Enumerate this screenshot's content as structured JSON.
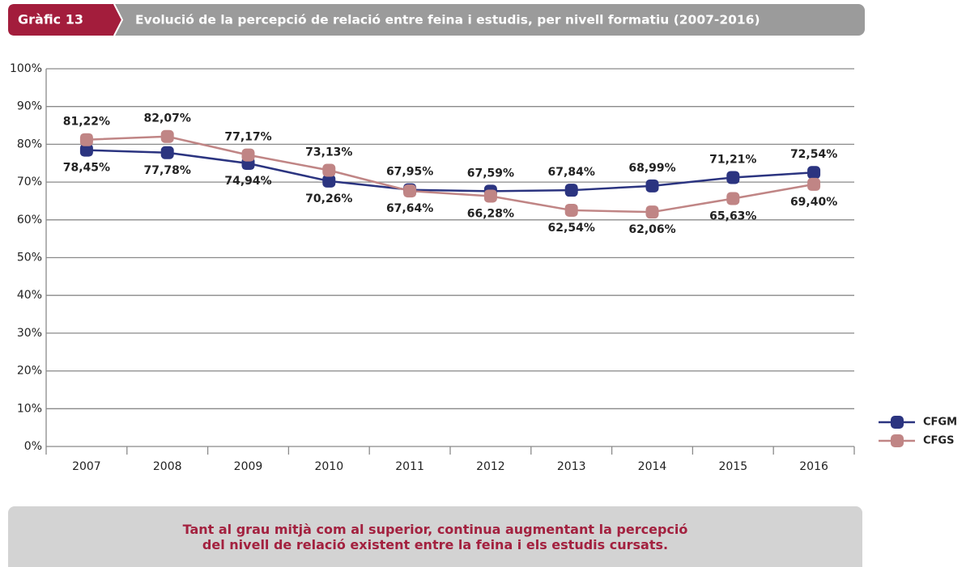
{
  "chart_data": {
    "type": "line",
    "label": "Gràfic 13",
    "title": "Evolució de la percepció de relació entre feina i estudis, per nivell formatiu (2007-2016)",
    "categories": [
      "2007",
      "2008",
      "2009",
      "2010",
      "2011",
      "2012",
      "2013",
      "2014",
      "2015",
      "2016"
    ],
    "series": [
      {
        "name": "CFGM",
        "color": "#2b3480",
        "values": [
          78.45,
          77.78,
          74.94,
          70.26,
          67.95,
          67.59,
          67.84,
          68.99,
          71.21,
          72.54
        ],
        "value_labels": [
          "78,45%",
          "77,78%",
          "74,94%",
          "70,26%",
          "67,95%",
          "67,59%",
          "67,84%",
          "68,99%",
          "71,21%",
          "72,54%"
        ]
      },
      {
        "name": "CFGS",
        "color": "#c08585",
        "values": [
          81.22,
          82.07,
          77.17,
          73.13,
          67.64,
          66.28,
          62.54,
          62.06,
          65.63,
          69.4
        ],
        "value_labels": [
          "81,22%",
          "82,07%",
          "77,17%",
          "73,13%",
          "67,64%",
          "66,28%",
          "62,54%",
          "62,06%",
          "65,63%",
          "69,40%"
        ]
      }
    ],
    "ylim": [
      0,
      100
    ],
    "yticks": [
      {
        "value": 0,
        "label": "0%"
      },
      {
        "value": 10,
        "label": "10%"
      },
      {
        "value": 20,
        "label": "20%"
      },
      {
        "value": 30,
        "label": "30%"
      },
      {
        "value": 40,
        "label": "40%"
      },
      {
        "value": 50,
        "label": "50%"
      },
      {
        "value": 60,
        "label": "60%"
      },
      {
        "value": 70,
        "label": "70%"
      },
      {
        "value": 80,
        "label": "80%"
      },
      {
        "value": 90,
        "label": "90%"
      },
      {
        "value": 100,
        "label": "100%"
      }
    ],
    "grid": true,
    "legend": "right",
    "note": "Tant al grau mitjà com al superior, continua augmentant la percepció del nivell de relació existent entre la feina i els estudis cursats."
  }
}
